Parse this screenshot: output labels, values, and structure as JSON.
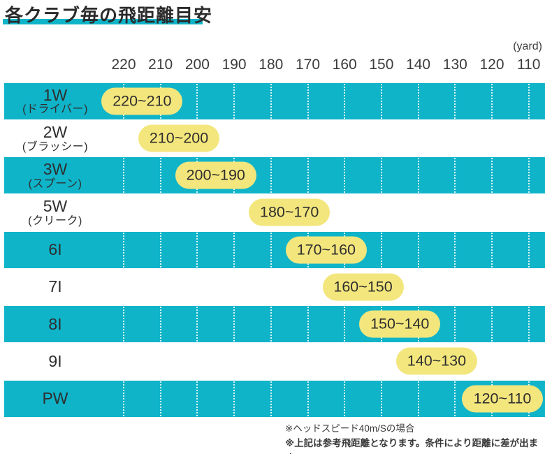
{
  "title": "各クラブ毎の飛距離目安",
  "unit_label": "(yard)",
  "colors": {
    "teal": "#0fb4c9",
    "pill_yellow": "#f3e67d",
    "text_dark": "#2e2e2e"
  },
  "chart_data": {
    "type": "table",
    "title": "各クラブ毎の飛距離目安",
    "unit": "yard",
    "x_ticks": [
      220,
      210,
      200,
      190,
      180,
      170,
      160,
      150,
      140,
      130,
      120,
      110
    ],
    "rows": [
      {
        "club": "1W",
        "club_sub": "(ドライバー)",
        "range_label": "220~210",
        "range": [
          220,
          210
        ]
      },
      {
        "club": "2W",
        "club_sub": "(ブラッシー)",
        "range_label": "210~200",
        "range": [
          210,
          200
        ]
      },
      {
        "club": "3W",
        "club_sub": "(スプーン)",
        "range_label": "200~190",
        "range": [
          200,
          190
        ]
      },
      {
        "club": "5W",
        "club_sub": "(クリーク)",
        "range_label": "180~170",
        "range": [
          180,
          170
        ]
      },
      {
        "club": "6I",
        "club_sub": "",
        "range_label": "170~160",
        "range": [
          170,
          160
        ]
      },
      {
        "club": "7I",
        "club_sub": "",
        "range_label": "160~150",
        "range": [
          160,
          150
        ]
      },
      {
        "club": "8I",
        "club_sub": "",
        "range_label": "150~140",
        "range": [
          150,
          140
        ]
      },
      {
        "club": "9I",
        "club_sub": "",
        "range_label": "140~130",
        "range": [
          140,
          130
        ]
      },
      {
        "club": "PW",
        "club_sub": "",
        "range_label": "120~110",
        "range": [
          120,
          110
        ]
      }
    ]
  },
  "footnotes": [
    "※ヘッドスピード40m/Sの場合",
    "※上記は参考飛距離となります。条件により距離に差が出ます。"
  ]
}
